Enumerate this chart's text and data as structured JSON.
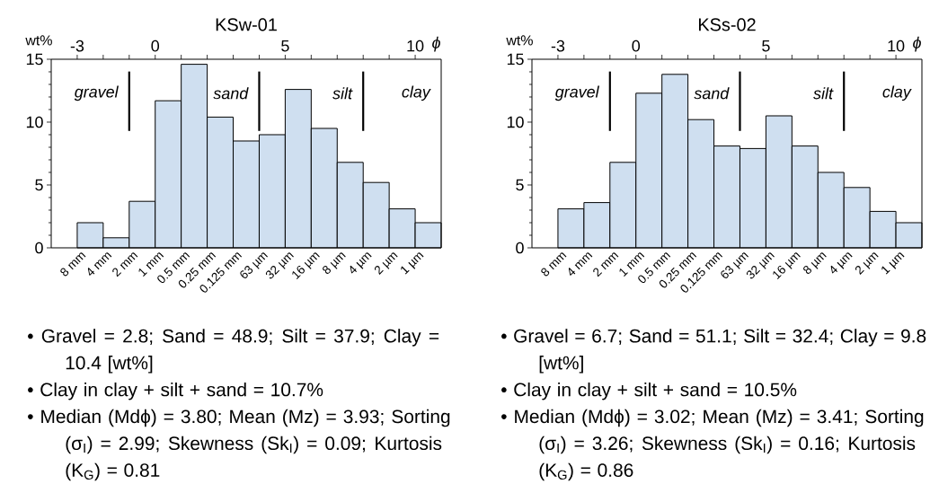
{
  "chart_data": [
    {
      "type": "histogram",
      "title": "KSw-01",
      "ylabel": "wt%",
      "xlabel": "ϕ",
      "color": "#cfdff0",
      "bins": [
        -3,
        -2,
        -1,
        0,
        1,
        2,
        3,
        4,
        5,
        6,
        7,
        8,
        9,
        10,
        11
      ],
      "values": [
        2.0,
        0.8,
        3.7,
        11.7,
        14.6,
        10.4,
        8.5,
        9.0,
        12.6,
        9.5,
        6.8,
        5.2,
        3.1,
        2.0
      ],
      "xlim": [
        -4,
        11
      ],
      "ylim": [
        0,
        15
      ],
      "yticks": [
        0,
        5,
        10,
        15
      ],
      "xticks": [
        -3,
        {
          "value": -2,
          "label": null
        },
        {
          "value": -1,
          "label": null
        },
        0,
        {
          "value": 1,
          "label": null
        },
        {
          "value": 2,
          "label": null
        },
        {
          "value": 3,
          "label": null
        },
        {
          "value": 4,
          "label": null
        },
        5,
        {
          "value": 6,
          "label": null
        },
        {
          "value": 7,
          "label": null
        },
        {
          "value": 8,
          "label": null
        },
        {
          "value": 9,
          "label": null
        },
        10
      ],
      "ref_lines": [
        {
          "axis": "x",
          "value": -1
        },
        {
          "axis": "x",
          "value": 4
        },
        {
          "axis": "x",
          "value": 8
        }
      ],
      "annotations": [
        {
          "text": "gravel"
        },
        {
          "text": "sand"
        },
        {
          "text": "silt"
        },
        {
          "text": "clay"
        },
        {
          "text": "8 mm",
          "x": -3,
          "y": 0
        },
        {
          "text": "4 mm",
          "x": -2,
          "y": 0
        },
        {
          "text": "2 mm",
          "x": -1,
          "y": 0
        },
        {
          "text": "1 mm",
          "x": 0,
          "y": 0
        },
        {
          "text": "0.5 mm",
          "x": 1,
          "y": 0
        },
        {
          "text": "0.25 mm",
          "x": 2,
          "y": 0
        },
        {
          "text": "0.125 mm",
          "x": 3,
          "y": 0
        },
        {
          "text": "63 µm",
          "x": 4,
          "y": 0
        },
        {
          "text": "32 µm",
          "x": 5,
          "y": 0
        },
        {
          "text": "16 µm",
          "x": 6,
          "y": 0
        },
        {
          "text": "8 µm",
          "x": 7,
          "y": 0
        },
        {
          "text": "4 µm",
          "x": 8,
          "y": 0
        },
        {
          "text": "2 µm",
          "x": 9,
          "y": 0
        },
        {
          "text": "1 µm",
          "x": 10,
          "y": 0
        },
        "• Gravel = 2.8; Sand = 48.9; Silt = 37.9; Clay = 10.4 [wt%]",
        "• Clay in clay + silt + sand  = 10.7%",
        "• Median (Mdϕ) = 3.80; Mean (Mz) = 3.93; Sorting (σ$_{I}$) = 2.99; Skewness (Sk$_{I}$) = 0.09; Kurtosis (K$_{G}$) = 0.81"
      ]
    },
    {
      "type": "histogram",
      "title": "KSs-02",
      "ylabel": "wt%",
      "xlabel": "ϕ",
      "color": "#cfdff0",
      "bins": [
        -3,
        -2,
        -1,
        0,
        1,
        2,
        3,
        4,
        5,
        6,
        7,
        8,
        9,
        10,
        11
      ],
      "values": [
        3.1,
        3.6,
        6.8,
        12.3,
        13.8,
        10.2,
        8.1,
        7.9,
        10.5,
        8.1,
        6.0,
        4.8,
        2.9,
        2.0
      ],
      "xlim": [
        -4,
        11
      ],
      "ylim": [
        0,
        15
      ],
      "yticks": [
        0,
        5,
        10,
        15
      ],
      "xticks": [
        -3,
        {
          "value": -2,
          "label": null
        },
        {
          "value": -1,
          "label": null
        },
        0,
        {
          "value": 1,
          "label": null
        },
        {
          "value": 2,
          "label": null
        },
        {
          "value": 3,
          "label": null
        },
        {
          "value": 4,
          "label": null
        },
        5,
        {
          "value": 6,
          "label": null
        },
        {
          "value": 7,
          "label": null
        },
        {
          "value": 8,
          "label": null
        },
        {
          "value": 9,
          "label": null
        },
        10
      ],
      "ref_lines": [
        {
          "axis": "x",
          "value": -1
        },
        {
          "axis": "x",
          "value": 4
        },
        {
          "axis": "x",
          "value": 8
        }
      ],
      "annotations": [
        {
          "text": "gravel"
        },
        {
          "text": "sand"
        },
        {
          "text": "silt"
        },
        {
          "text": "clay"
        },
        {
          "text": "8 mm",
          "x": -3,
          "y": 0
        },
        {
          "text": "4 mm",
          "x": -2,
          "y": 0
        },
        {
          "text": "2 mm",
          "x": -1,
          "y": 0
        },
        {
          "text": "1 mm",
          "x": 0,
          "y": 0
        },
        {
          "text": "0.5 mm",
          "x": 1,
          "y": 0
        },
        {
          "text": "0.25 mm",
          "x": 2,
          "y": 0
        },
        {
          "text": "0.125 mm",
          "x": 3,
          "y": 0
        },
        {
          "text": "63 µm",
          "x": 4,
          "y": 0
        },
        {
          "text": "32 µm",
          "x": 5,
          "y": 0
        },
        {
          "text": "16 µm",
          "x": 6,
          "y": 0
        },
        {
          "text": "8 µm",
          "x": 7,
          "y": 0
        },
        {
          "text": "4 µm",
          "x": 8,
          "y": 0
        },
        {
          "text": "2 µm",
          "x": 9,
          "y": 0
        },
        {
          "text": "1 µm",
          "x": 10,
          "y": 0
        },
        "• Gravel = 6.7; Sand = 51.1; Silt = 32.4; Clay = 9.8 [wt%]",
        "• Clay in clay + silt + sand  = 10.5%",
        "• Median (Mdϕ)  = 3.02; Mean (Mz) = 3.41; Sorting (σ$_{I}$)  = 3.26; Skewness (Sk$_{I}$)  = 0.16; Kurtosis (K$_{G}$) = 0.86"
      ]
    }
  ]
}
